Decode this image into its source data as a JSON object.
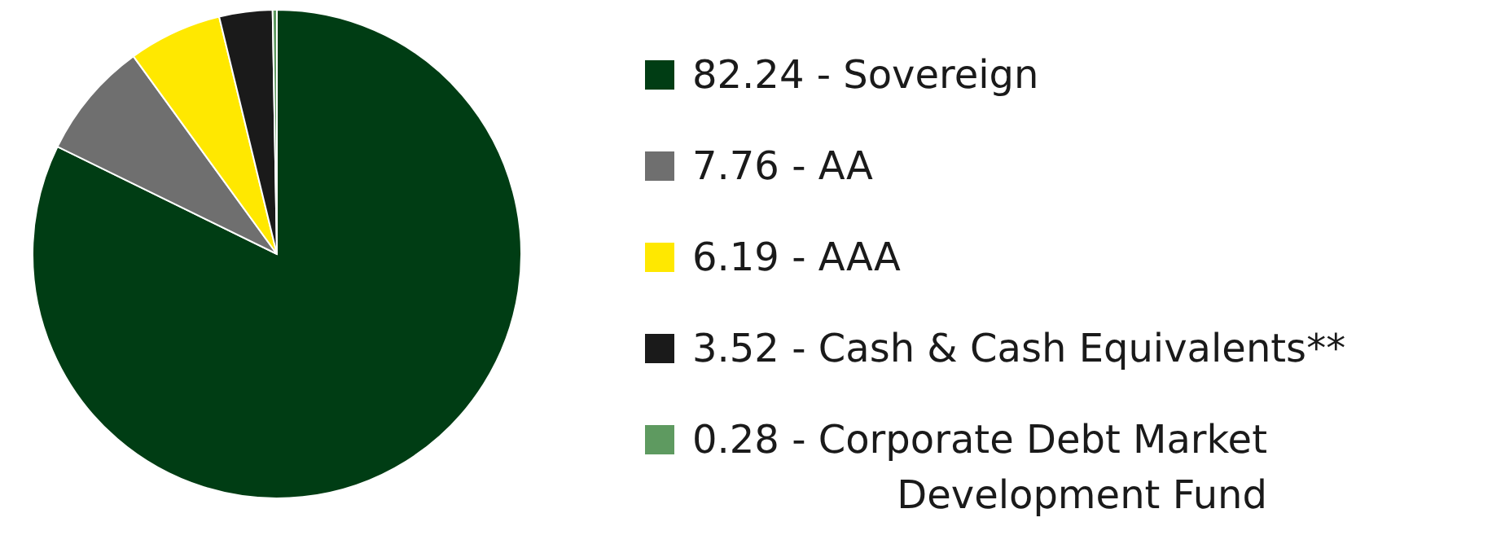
{
  "chart_data": {
    "type": "pie",
    "categories": [
      "82.24 - Sovereign",
      "7.76 - AA",
      "6.19 - AAA",
      "3.52 - Cash & Cash Equivalents**",
      "0.28 - Corporate Debt Market Development Fund"
    ],
    "values": [
      82.24,
      7.76,
      6.19,
      3.52,
      0.28
    ],
    "colors": [
      "#003d14",
      "#6f6f6f",
      "#ffe800",
      "#1a1a1a",
      "#5e9a60"
    ],
    "legend": "right"
  }
}
